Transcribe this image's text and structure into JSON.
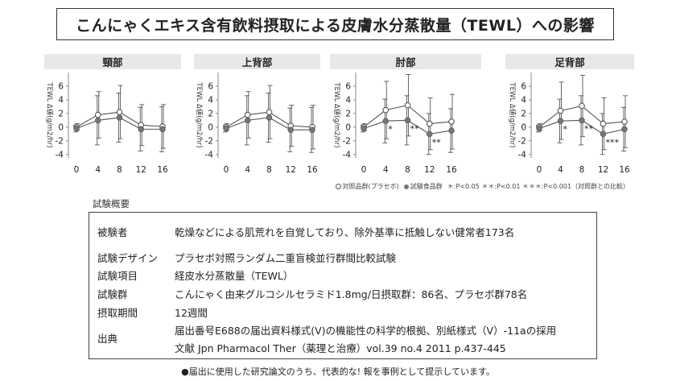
{
  "title": "こんにゃくエキス含有飲料摂取による皮膚水分蒸散量（TEWL）への影響",
  "chart_data": [
    {
      "type": "line",
      "title": "頸部",
      "ylabel": "TEWL Δ値(g/m2/hr)",
      "x": [
        0,
        4,
        8,
        12,
        16
      ],
      "ylim": [
        -4.5,
        8
      ],
      "yticks": [
        -4,
        -2,
        0,
        2,
        4,
        6
      ],
      "series": [
        {
          "name": "対照品群(プラセボ)",
          "marker": "open",
          "values": [
            0,
            1.8,
            2.2,
            0.3,
            0.1
          ],
          "err": [
            0.5,
            3.4,
            3.9,
            3.0,
            3.2
          ]
        },
        {
          "name": "試験食品群",
          "marker": "filled",
          "values": [
            -0.2,
            1.0,
            1.4,
            -0.3,
            -0.3
          ],
          "err": [
            0.5,
            3.6,
            3.6,
            3.2,
            3.3
          ]
        }
      ],
      "annotations": []
    },
    {
      "type": "line",
      "title": "上背部",
      "ylabel": "TEWL Δ値(g/m2/hr)",
      "x": [
        0,
        4,
        8,
        12,
        16
      ],
      "ylim": [
        -4.5,
        8
      ],
      "yticks": [
        -4,
        -2,
        0,
        2,
        4,
        6
      ],
      "series": [
        {
          "name": "対照品群(プラセボ)",
          "marker": "open",
          "values": [
            0,
            1.8,
            2.2,
            0.2,
            0.0
          ],
          "err": [
            0.5,
            3.4,
            3.9,
            3.0,
            3.2
          ]
        },
        {
          "name": "試験食品群",
          "marker": "filled",
          "values": [
            -0.2,
            1.0,
            1.4,
            -0.4,
            -0.4
          ],
          "err": [
            0.5,
            3.6,
            3.6,
            3.2,
            3.3
          ]
        }
      ],
      "annotations": []
    },
    {
      "type": "line",
      "title": "肘部",
      "ylabel": "TEWL Δ値(g/m2/hr)",
      "x": [
        0,
        4,
        8,
        12,
        16
      ],
      "ylim": [
        -4.5,
        8
      ],
      "yticks": [
        -4,
        -2,
        0,
        2,
        4,
        6
      ],
      "series": [
        {
          "name": "対照品群(プラセボ)",
          "marker": "open",
          "values": [
            0,
            2.5,
            3.2,
            0.5,
            0.8
          ],
          "err": [
            0.5,
            4.2,
            4.5,
            3.8,
            4.0
          ]
        },
        {
          "name": "試験食品群",
          "marker": "filled",
          "values": [
            -0.2,
            0.9,
            1.0,
            -1.0,
            -0.5
          ],
          "err": [
            0.5,
            3.2,
            3.6,
            3.0,
            3.2
          ]
        }
      ],
      "annotations": [
        {
          "x": 4,
          "text": "*"
        },
        {
          "x": 8,
          "text": "**"
        },
        {
          "x": 12,
          "text": "**"
        }
      ]
    },
    {
      "type": "line",
      "title": "足背部",
      "ylabel": "TEWL Δ値(g/m2/hr)",
      "x": [
        0,
        4,
        8,
        12,
        16
      ],
      "ylim": [
        -4.5,
        8
      ],
      "yticks": [
        -4,
        -2,
        0,
        2,
        4,
        6
      ],
      "series": [
        {
          "name": "対照品群(プラセボ)",
          "marker": "open",
          "values": [
            0,
            2.4,
            3.1,
            0.5,
            0.8
          ],
          "err": [
            0.5,
            4.2,
            4.5,
            3.8,
            3.8
          ]
        },
        {
          "name": "試験食品群",
          "marker": "filled",
          "values": [
            -0.2,
            0.9,
            1.0,
            -1.0,
            -0.3
          ],
          "err": [
            0.5,
            3.2,
            3.6,
            3.0,
            3.2
          ]
        }
      ],
      "annotations": [
        {
          "x": 4,
          "text": "*"
        },
        {
          "x": 8,
          "text": "**"
        },
        {
          "x": 12,
          "text": "***"
        }
      ]
    }
  ],
  "legend": {
    "control": "対照品群(プラセボ)",
    "test": "試験食品群",
    "sig": "＊:P<0.05 ＊＊:P<0.01 ＊＊＊:P<0.001（対照群との比較）"
  },
  "overview_label": "試験概要",
  "summary_rows": [
    {
      "key": "被験者",
      "value": "乾燥などによる肌荒れを自覚しており、除外基準に抵触しない健常者173名"
    },
    {
      "key": "試験デザイン",
      "value": "プラセボ対照ランダム二重盲検並行群間比較試験"
    },
    {
      "key": "試験項目",
      "value": "経皮水分蒸散量（TEWL）"
    },
    {
      "key": "試験群",
      "value": "こんにゃく由来グルコシルセラミド1.8mg/日摂取群：86名、プラセボ群78名"
    },
    {
      "key": "摂取期間",
      "value": "12週間"
    },
    {
      "key": "出典",
      "value": "届出番号E688の届出資料様式(Ⅴ)の機能性の科学的根拠、別紙様式（Ⅴ）-11aの採用",
      "value2": "文献 Jpn Pharmacol Ther（薬理と治療）vol.39 no.4 2011 p.437-445"
    }
  ],
  "footnote": "●届出に使用した研究論文のうち、代表的な! 報を事例として提示しています。"
}
